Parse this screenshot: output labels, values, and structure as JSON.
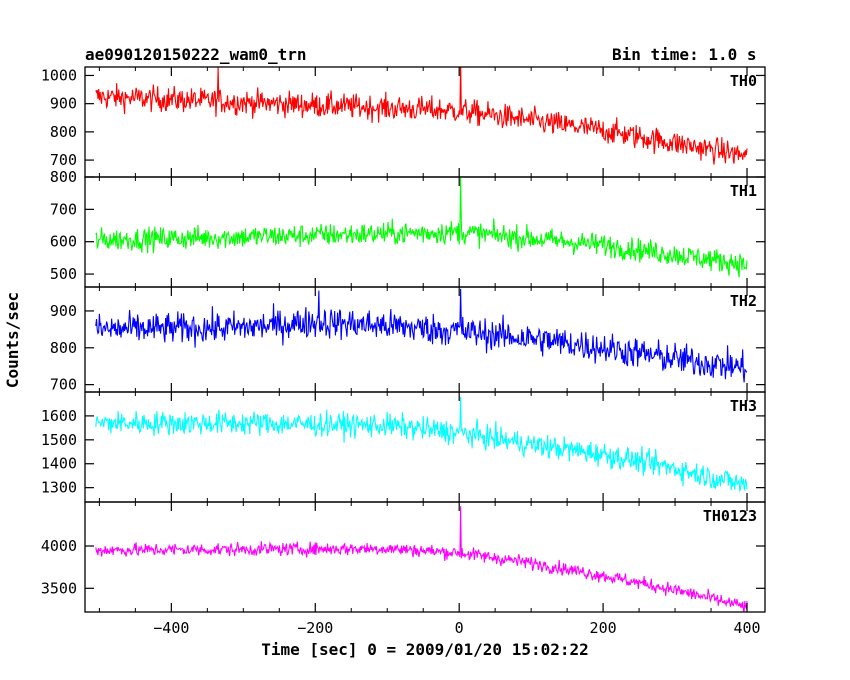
{
  "header": {
    "title": "ae090120150222_wam0_trn",
    "bin_time": "Bin time: 1.0 s"
  },
  "chart_data": {
    "type": "line",
    "title": "ae090120150222_wam0_trn",
    "xlabel": "Time [sec] 0 = 2009/01/20 15:02:22",
    "ylabel": "Counts/sec",
    "xlim": [
      -520,
      425
    ],
    "x_ticks": [
      -400,
      -200,
      0,
      200,
      400
    ],
    "x_range": [
      -505,
      400
    ],
    "grid": false,
    "panels": [
      {
        "name": "TH0",
        "color": "#ff0000",
        "ylim": [
          640,
          1030
        ],
        "y_ticks": [
          700,
          800,
          900,
          1000
        ],
        "y_tick_labels": [
          "700",
          "800",
          "900",
          "1000"
        ],
        "trend": [
          [
            -505,
            925
          ],
          [
            -300,
            905
          ],
          [
            -100,
            885
          ],
          [
            0,
            875
          ],
          [
            100,
            840
          ],
          [
            200,
            805
          ],
          [
            300,
            760
          ],
          [
            400,
            715
          ]
        ],
        "noise": 40,
        "spikes": [
          [
            -335,
            1030
          ],
          [
            2,
            1060
          ]
        ]
      },
      {
        "name": "TH1",
        "color": "#00ff00",
        "ylim": [
          460,
          800
        ],
        "y_ticks": [
          500,
          600,
          700,
          800
        ],
        "y_tick_labels": [
          "500",
          "600",
          "700",
          "800"
        ],
        "trend": [
          [
            -505,
            605
          ],
          [
            -300,
            615
          ],
          [
            -100,
            625
          ],
          [
            0,
            630
          ],
          [
            100,
            610
          ],
          [
            200,
            590
          ],
          [
            300,
            560
          ],
          [
            400,
            530
          ]
        ],
        "noise": 32,
        "spikes": [
          [
            2,
            800
          ]
        ]
      },
      {
        "name": "TH2",
        "color": "#0000ff",
        "ylim": [
          680,
          965
        ],
        "y_ticks": [
          700,
          800,
          900
        ],
        "y_tick_labels": [
          "700",
          "800",
          "900"
        ],
        "trend": [
          [
            -505,
            850
          ],
          [
            -300,
            855
          ],
          [
            -200,
            870
          ],
          [
            -100,
            860
          ],
          [
            0,
            845
          ],
          [
            100,
            825
          ],
          [
            200,
            800
          ],
          [
            300,
            770
          ],
          [
            400,
            745
          ]
        ],
        "noise": 38,
        "spikes": [
          [
            -195,
            955
          ],
          [
            2,
            960
          ]
        ]
      },
      {
        "name": "TH3",
        "color": "#00ffff",
        "ylim": [
          1240,
          1700
        ],
        "y_ticks": [
          1300,
          1400,
          1500,
          1600
        ],
        "y_tick_labels": [
          "1300",
          "1400",
          "1500",
          "1600"
        ],
        "trend": [
          [
            -505,
            1570
          ],
          [
            -300,
            1570
          ],
          [
            -100,
            1560
          ],
          [
            0,
            1530
          ],
          [
            100,
            1480
          ],
          [
            200,
            1440
          ],
          [
            300,
            1380
          ],
          [
            400,
            1310
          ]
        ],
        "noise": 45,
        "spikes": [
          [
            2,
            1680
          ]
        ]
      },
      {
        "name": "TH0123",
        "color": "#ff00ff",
        "ylim": [
          3220,
          4520
        ],
        "y_ticks": [
          3500,
          4000
        ],
        "y_tick_labels": [
          "3500",
          "4000"
        ],
        "trend": [
          [
            -505,
            3950
          ],
          [
            -300,
            3960
          ],
          [
            -100,
            3970
          ],
          [
            0,
            3920
          ],
          [
            100,
            3800
          ],
          [
            200,
            3650
          ],
          [
            300,
            3480
          ],
          [
            400,
            3280
          ]
        ],
        "noise": 70,
        "spikes": [
          [
            2,
            4470
          ]
        ]
      }
    ]
  }
}
